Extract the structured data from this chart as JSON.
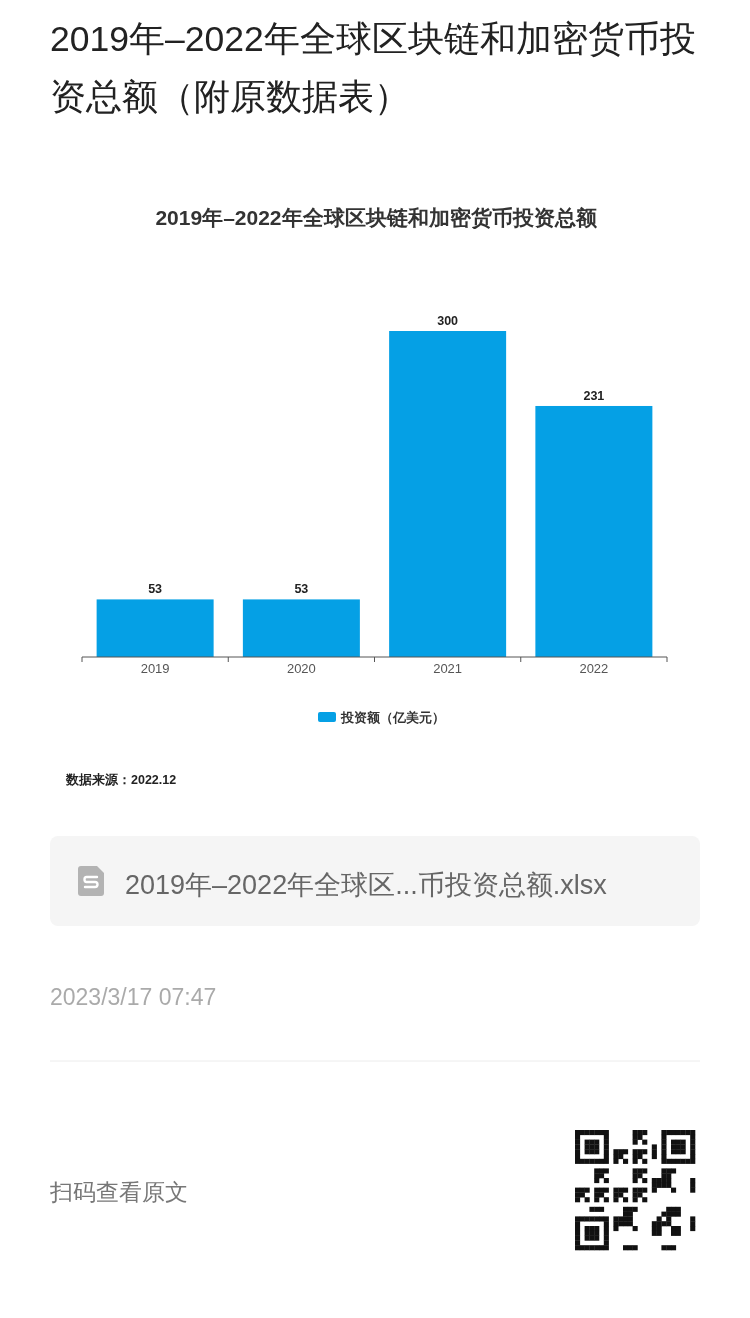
{
  "chart_data": {
    "type": "bar",
    "title": "2019年–2022年全球区块链和加密货币投资总额（附原数据表）",
    "subtitle": "2019年–2022年全球区块链和加密货币投资总额",
    "categories": [
      "2019",
      "2020",
      "2021",
      "2022"
    ],
    "series": [
      {
        "name": "投资额（亿美元）",
        "color": "#05a0e5",
        "values": [
          53,
          53,
          300,
          231
        ]
      }
    ],
    "data_labels": true,
    "legend": "bottom",
    "annotations": [
      "数据来源：2022.12",
      "2019年–2022年全球区...币投资总额.xlsx",
      "2023/3/17 07:47",
      "扫码查看原文"
    ]
  }
}
